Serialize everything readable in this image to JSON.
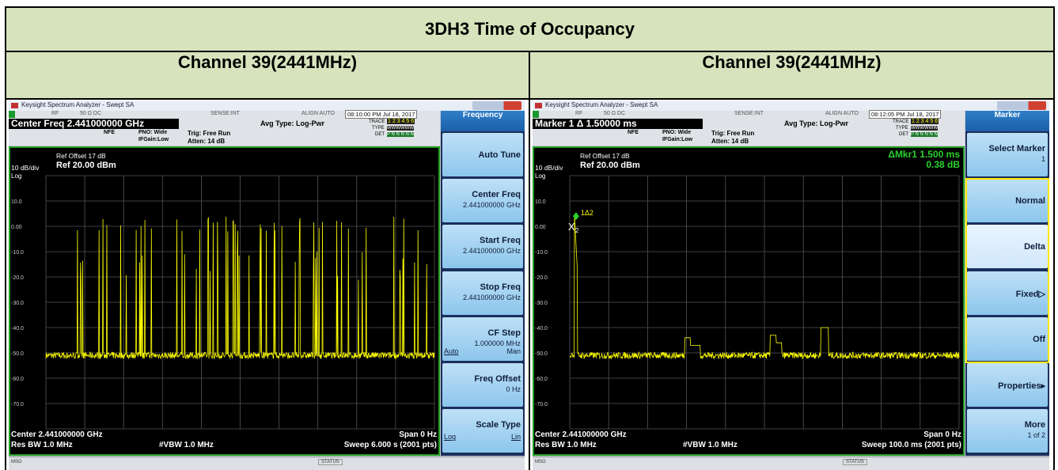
{
  "title": "3DH3 Time of Occupancy",
  "panels": [
    {
      "header": "Channel 39(2441MHz)",
      "screen": {
        "window_title": "Keysight Spectrum Analyzer - Swept SA",
        "rf": "RF",
        "impedance": "50 Ω  DC",
        "sense": "SENSE:INT",
        "align": "ALIGN AUTO",
        "datetime": "08:10:00 PM Jul 18, 2017",
        "readout": "Center Freq 2.441000000 GHz",
        "nfe": "NFE",
        "pno": "PNO: Wide",
        "ifgain": "IFGain:Low",
        "trig": "Trig: Free Run",
        "atten": "Atten: 14 dB",
        "avg_type": "Avg Type: Log-Pwr",
        "trace_label": "TRACE",
        "trace_nums": "1 2 3 4 5 6",
        "type_label": "TYPE",
        "type_vals": "WWWWWW",
        "det_label": "DET",
        "det_vals": "P N N N N N",
        "ref_offset": "Ref Offset 17 dB",
        "scale": "10 dB/div",
        "ref_level": "Ref 20.00 dBm",
        "log": "Log",
        "y_labels": [
          "10.0",
          "0.00",
          "-10.0",
          "-20.0",
          "-30.0",
          "-40.0",
          "-50.0",
          "-60.0",
          "-70.0"
        ],
        "center": "Center 2.441000000 GHz",
        "span": "Span 0 Hz",
        "res_bw": "Res BW 1.0 MHz",
        "vbw": "#VBW 1.0 MHz",
        "sweep": "Sweep  6.000 s (2001 pts)",
        "msg": "MSG",
        "status": "STATUS",
        "menu_title": "Frequency",
        "softkeys": [
          {
            "label": "Auto Tune"
          },
          {
            "label": "Center Freq",
            "sub": "2.441000000 GHz"
          },
          {
            "label": "Start Freq",
            "sub": "2.441000000 GHz"
          },
          {
            "label": "Stop Freq",
            "sub": "2.441000000 GHz"
          },
          {
            "label": "CF Step",
            "sub": "1.000000 MHz",
            "left": "Auto",
            "right": "Man"
          },
          {
            "label": "Freq Offset",
            "sub": "0 Hz"
          },
          {
            "label": "Scale Type",
            "left": "Log",
            "right": "Lin"
          }
        ]
      }
    },
    {
      "header": "Channel 39(2441MHz)",
      "screen": {
        "window_title": "Keysight Spectrum Analyzer - Swept SA",
        "rf": "RF",
        "impedance": "50 Ω  DC",
        "sense": "SENSE:INT",
        "align": "ALIGN AUTO",
        "datetime": "08:12:05 PM Jul 18, 2017",
        "readout": "Marker 1 Δ 1.50000 ms",
        "nfe": "NFE",
        "pno": "PNO: Wide",
        "ifgain": "IFGain:Low",
        "trig": "Trig: Free Run",
        "atten": "Atten: 14 dB",
        "avg_type": "Avg Type: Log-Pwr",
        "trace_label": "TRACE",
        "trace_nums": "1 2 3 4 5 6",
        "type_label": "TYPE",
        "type_vals": "WWWWWW",
        "det_label": "DET",
        "det_vals": "P N N N N N",
        "ref_offset": "Ref Offset 17 dB",
        "scale": "10 dB/div",
        "ref_level": "Ref 20.00 dBm",
        "log": "Log",
        "y_labels": [
          "10.0",
          "0.00",
          "-10.0",
          "-20.0",
          "-30.0",
          "-40.0",
          "-50.0",
          "-60.0",
          "-70.0"
        ],
        "marker_readout": "ΔMkr1 1.500 ms",
        "marker_value": "0.38 dB",
        "marker_label": "1Δ2",
        "marker_x": "X",
        "marker_ref": "2",
        "center": "Center 2.441000000 GHz",
        "span": "Span 0 Hz",
        "res_bw": "Res BW 1.0 MHz",
        "vbw": "#VBW 1.0 MHz",
        "sweep": "Sweep  100.0 ms (2001 pts)",
        "msg": "MSG",
        "status": "STATUS",
        "menu_title": "Marker",
        "softkeys": [
          {
            "label": "Select Marker",
            "sub": "1"
          },
          {
            "label": "Normal"
          },
          {
            "label": "Delta"
          },
          {
            "label": "Fixed▷"
          },
          {
            "label": "Off"
          },
          {
            "label": "Properties▸"
          },
          {
            "label": "More",
            "sub": "1 of 2"
          }
        ]
      }
    }
  ]
}
